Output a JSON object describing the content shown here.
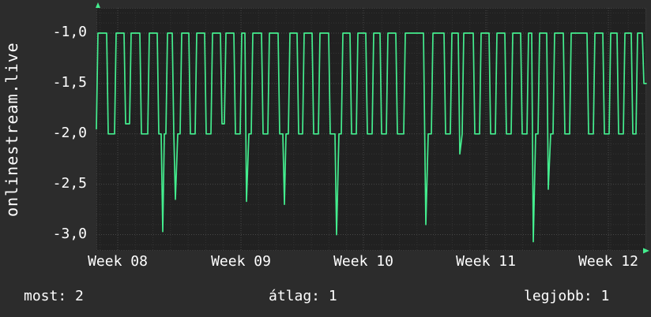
{
  "watermark": "onlinestream.live",
  "footer": {
    "most": "most: 2",
    "atlag": "átlag: 1",
    "legjobb": "legjobb: 1"
  },
  "colors": {
    "background": "#2c2c2c",
    "plot_background": "#212121",
    "grid_minor": "#333333",
    "grid_major": "#474747",
    "border": "#4a4a4a",
    "line": "#44ed8e",
    "text": "#ffffff"
  },
  "chart_data": {
    "type": "line",
    "title": "",
    "ylabel": "onlinestream.live",
    "xlabel": "",
    "legend": "none",
    "grid": true,
    "xlim": [
      0,
      696
    ],
    "ylim": [
      -3.16,
      -0.75
    ],
    "x_ticks": [
      {
        "label": "Week 08",
        "t": 27
      },
      {
        "label": "Week 09",
        "t": 183
      },
      {
        "label": "Week 10",
        "t": 338
      },
      {
        "label": "Week 11",
        "t": 493
      },
      {
        "label": "Week 12",
        "t": 648
      }
    ],
    "y_ticks": [
      {
        "label": "-1,0",
        "value": -1.0
      },
      {
        "label": "-1,5",
        "value": -1.5
      },
      {
        "label": "-2,0",
        "value": -2.0
      },
      {
        "label": "-2,5",
        "value": -2.5
      },
      {
        "label": "-3,0",
        "value": -3.0
      }
    ],
    "stats": {
      "most": 2,
      "atlag": 1,
      "legjobb": 1
    },
    "series": [
      {
        "name": "onlinestream.live value",
        "color": "#44ed8e",
        "points": [
          [
            0,
            -1.95
          ],
          [
            2,
            -1
          ],
          [
            13,
            -1
          ],
          [
            15,
            -2
          ],
          [
            23,
            -2
          ],
          [
            25,
            -1
          ],
          [
            35,
            -1
          ],
          [
            37,
            -1.9
          ],
          [
            42,
            -1.9
          ],
          [
            44,
            -1
          ],
          [
            55,
            -1
          ],
          [
            57,
            -2
          ],
          [
            65,
            -2
          ],
          [
            67,
            -1
          ],
          [
            77,
            -1
          ],
          [
            79,
            -2
          ],
          [
            82,
            -2
          ],
          [
            84,
            -2.97
          ],
          [
            86,
            -2
          ],
          [
            88,
            -2
          ],
          [
            90,
            -1
          ],
          [
            96,
            -1
          ],
          [
            98,
            -2
          ],
          [
            100,
            -2.65
          ],
          [
            103,
            -2
          ],
          [
            106,
            -2
          ],
          [
            108,
            -1
          ],
          [
            117,
            -1
          ],
          [
            119,
            -2
          ],
          [
            125,
            -2
          ],
          [
            127,
            -1
          ],
          [
            137,
            -1
          ],
          [
            139,
            -2
          ],
          [
            145,
            -2
          ],
          [
            147,
            -1
          ],
          [
            157,
            -1
          ],
          [
            159,
            -1.9
          ],
          [
            162,
            -1.9
          ],
          [
            164,
            -1
          ],
          [
            174,
            -1
          ],
          [
            176,
            -2
          ],
          [
            182,
            -2
          ],
          [
            184,
            -1
          ],
          [
            188,
            -1
          ],
          [
            190,
            -2.67
          ],
          [
            193,
            -2
          ],
          [
            196,
            -2
          ],
          [
            198,
            -1
          ],
          [
            209,
            -1
          ],
          [
            211,
            -2
          ],
          [
            217,
            -2
          ],
          [
            219,
            -1
          ],
          [
            230,
            -1
          ],
          [
            232,
            -2
          ],
          [
            236,
            -2
          ],
          [
            238,
            -2.7
          ],
          [
            240,
            -2
          ],
          [
            243,
            -2
          ],
          [
            245,
            -1
          ],
          [
            254,
            -1
          ],
          [
            256,
            -2
          ],
          [
            261,
            -2
          ],
          [
            263,
            -1
          ],
          [
            273,
            -1
          ],
          [
            275,
            -2
          ],
          [
            281,
            -2
          ],
          [
            283,
            -1
          ],
          [
            294,
            -1
          ],
          [
            296,
            -2
          ],
          [
            302,
            -2
          ],
          [
            304,
            -3
          ],
          [
            307,
            -2
          ],
          [
            310,
            -2
          ],
          [
            312,
            -1
          ],
          [
            321,
            -1
          ],
          [
            323,
            -2
          ],
          [
            329,
            -2
          ],
          [
            331,
            -1
          ],
          [
            341,
            -1
          ],
          [
            343,
            -2
          ],
          [
            349,
            -2
          ],
          [
            351,
            -1
          ],
          [
            359,
            -1
          ],
          [
            361,
            -2
          ],
          [
            367,
            -2
          ],
          [
            369,
            -1
          ],
          [
            379,
            -1
          ],
          [
            381,
            -2
          ],
          [
            389,
            -2
          ],
          [
            391,
            -1
          ],
          [
            414,
            -1
          ],
          [
            417,
            -2.9
          ],
          [
            420,
            -2
          ],
          [
            424,
            -2
          ],
          [
            426,
            -1
          ],
          [
            440,
            -1
          ],
          [
            442,
            -2
          ],
          [
            448,
            -2
          ],
          [
            450,
            -1
          ],
          [
            458,
            -1
          ],
          [
            460,
            -2.2
          ],
          [
            463,
            -2
          ],
          [
            465,
            -1
          ],
          [
            477,
            -1
          ],
          [
            479,
            -2
          ],
          [
            485,
            -2
          ],
          [
            487,
            -1
          ],
          [
            497,
            -1
          ],
          [
            499,
            -2
          ],
          [
            505,
            -2
          ],
          [
            507,
            -1
          ],
          [
            517,
            -1
          ],
          [
            519,
            -2
          ],
          [
            525,
            -2
          ],
          [
            527,
            -1
          ],
          [
            537,
            -1
          ],
          [
            539,
            -2
          ],
          [
            545,
            -2
          ],
          [
            547,
            -1
          ],
          [
            551,
            -1
          ],
          [
            553,
            -3.07
          ],
          [
            556,
            -2
          ],
          [
            559,
            -2
          ],
          [
            561,
            -1
          ],
          [
            570,
            -1
          ],
          [
            572,
            -2.55
          ],
          [
            575,
            -2
          ],
          [
            578,
            -2
          ],
          [
            580,
            -1
          ],
          [
            591,
            -1
          ],
          [
            593,
            -2
          ],
          [
            599,
            -2
          ],
          [
            601,
            -1
          ],
          [
            621,
            -1
          ],
          [
            623,
            -2
          ],
          [
            629,
            -2
          ],
          [
            631,
            -1
          ],
          [
            641,
            -1
          ],
          [
            643,
            -2
          ],
          [
            649,
            -2
          ],
          [
            651,
            -1
          ],
          [
            659,
            -1
          ],
          [
            661,
            -2
          ],
          [
            667,
            -2
          ],
          [
            669,
            -1
          ],
          [
            677,
            -1
          ],
          [
            679,
            -2
          ],
          [
            683,
            -2
          ],
          [
            685,
            -1
          ],
          [
            691,
            -1
          ],
          [
            693,
            -1.5
          ],
          [
            696,
            -1.5
          ]
        ]
      }
    ]
  }
}
